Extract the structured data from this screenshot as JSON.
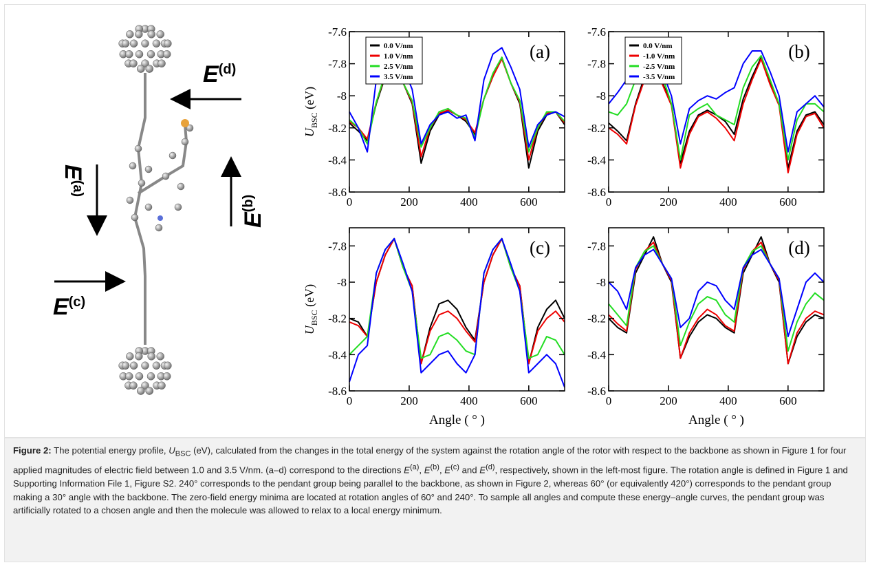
{
  "figure": {
    "field_labels": [
      {
        "symbol": "E",
        "sup": "(a)"
      },
      {
        "symbol": "E",
        "sup": "(b)"
      },
      {
        "symbol": "E",
        "sup": "(c)"
      },
      {
        "symbol": "E",
        "sup": "(d)"
      }
    ]
  },
  "chart_data": [
    {
      "type": "line",
      "annotation": "(a)",
      "ylabel": {
        "symbol": "U",
        "sub": "BSC",
        "unit": " (eV)"
      },
      "x": [
        0,
        30,
        60,
        90,
        120,
        150,
        180,
        210,
        240,
        270,
        300,
        330,
        360,
        390,
        420,
        450,
        480,
        510,
        540,
        570,
        600,
        630,
        660,
        690,
        720
      ],
      "xlim": [
        0,
        720
      ],
      "xticks": [
        0,
        200,
        400,
        600
      ],
      "ylim": [
        -8.6,
        -7.6
      ],
      "yticks": [
        -8.6,
        -8.4,
        -8.2,
        -8,
        -7.8,
        -7.6
      ],
      "legend": "upper left",
      "series": [
        {
          "name": "0.0 V/nm",
          "color": "#000000",
          "values": [
            -8.17,
            -8.22,
            -8.28,
            -8.05,
            -7.88,
            -7.76,
            -7.92,
            -8.05,
            -8.42,
            -8.22,
            -8.12,
            -8.09,
            -8.12,
            -8.16,
            -8.24,
            -8.02,
            -7.88,
            -7.76,
            -7.92,
            -8.05,
            -8.45,
            -8.22,
            -8.12,
            -8.1,
            -8.18
          ]
        },
        {
          "name": "1.0 V/nm",
          "color": "#ee0000",
          "values": [
            -8.16,
            -8.2,
            -8.27,
            -8.04,
            -7.87,
            -7.77,
            -7.92,
            -8.04,
            -8.38,
            -8.2,
            -8.11,
            -8.09,
            -8.12,
            -8.15,
            -8.23,
            -8.02,
            -7.88,
            -7.77,
            -7.92,
            -8.04,
            -8.4,
            -8.2,
            -8.11,
            -8.1,
            -8.17
          ]
        },
        {
          "name": "2.5 V/nm",
          "color": "#22dd22",
          "values": [
            -8.15,
            -8.2,
            -8.3,
            -8.04,
            -7.86,
            -7.76,
            -7.92,
            -8.03,
            -8.32,
            -8.2,
            -8.1,
            -8.08,
            -8.12,
            -8.14,
            -8.26,
            -8.02,
            -7.86,
            -7.76,
            -7.92,
            -8.03,
            -8.35,
            -8.2,
            -8.1,
            -8.1,
            -8.16
          ]
        },
        {
          "name": "3.5 V/nm",
          "color": "#0000ff",
          "values": [
            -8.1,
            -8.2,
            -8.35,
            -7.9,
            -7.74,
            -7.7,
            -7.82,
            -7.96,
            -8.3,
            -8.18,
            -8.12,
            -8.1,
            -8.14,
            -8.12,
            -8.28,
            -7.9,
            -7.74,
            -7.7,
            -7.82,
            -7.96,
            -8.32,
            -8.18,
            -8.12,
            -8.1,
            -8.13
          ]
        }
      ]
    },
    {
      "type": "line",
      "annotation": "(b)",
      "x": [
        0,
        30,
        60,
        90,
        120,
        150,
        180,
        210,
        240,
        270,
        300,
        330,
        360,
        390,
        420,
        450,
        480,
        510,
        540,
        570,
        600,
        630,
        660,
        690,
        720
      ],
      "xlim": [
        0,
        720
      ],
      "xticks": [
        0,
        200,
        400,
        600
      ],
      "ylim": [
        -8.6,
        -7.6
      ],
      "yticks": [
        -8.6,
        -8.4,
        -8.2,
        -8,
        -7.8,
        -7.6
      ],
      "legend": "upper left",
      "series": [
        {
          "name": "0.0 V/nm",
          "color": "#000000",
          "values": [
            -8.17,
            -8.22,
            -8.28,
            -8.05,
            -7.88,
            -7.76,
            -7.92,
            -8.05,
            -8.42,
            -8.22,
            -8.12,
            -8.09,
            -8.12,
            -8.16,
            -8.24,
            -8.02,
            -7.88,
            -7.76,
            -7.92,
            -8.05,
            -8.45,
            -8.22,
            -8.12,
            -8.1,
            -8.18
          ]
        },
        {
          "name": "-1.0 V/nm",
          "color": "#ee0000",
          "values": [
            -8.2,
            -8.24,
            -8.3,
            -8.06,
            -7.9,
            -7.77,
            -7.93,
            -8.06,
            -8.45,
            -8.24,
            -8.13,
            -8.1,
            -8.14,
            -8.2,
            -8.28,
            -8.05,
            -7.9,
            -7.77,
            -7.93,
            -8.06,
            -8.48,
            -8.24,
            -8.13,
            -8.11,
            -8.2
          ]
        },
        {
          "name": "-2.5 V/nm",
          "color": "#22dd22",
          "values": [
            -8.1,
            -8.12,
            -8.05,
            -7.9,
            -7.82,
            -7.75,
            -7.88,
            -8.05,
            -8.4,
            -8.12,
            -8.08,
            -8.05,
            -8.12,
            -8.15,
            -8.18,
            -7.95,
            -7.82,
            -7.75,
            -7.9,
            -8.05,
            -8.4,
            -8.15,
            -8.05,
            -8.05,
            -8.1
          ]
        },
        {
          "name": "-3.5 V/nm",
          "color": "#0000ff",
          "values": [
            -8.05,
            -7.98,
            -7.9,
            -7.75,
            -7.7,
            -7.72,
            -7.85,
            -8.0,
            -8.3,
            -8.08,
            -8.03,
            -8.0,
            -8.02,
            -7.98,
            -7.95,
            -7.8,
            -7.72,
            -7.72,
            -7.85,
            -8.0,
            -8.35,
            -8.1,
            -8.05,
            -8.0,
            -8.07
          ]
        }
      ]
    },
    {
      "type": "line",
      "annotation": "(c)",
      "ylabel": {
        "symbol": "U",
        "sub": "BSC",
        "unit": " (eV)"
      },
      "xlabel": "Angle ( ° )",
      "x": [
        0,
        30,
        60,
        90,
        120,
        150,
        180,
        210,
        240,
        270,
        300,
        330,
        360,
        390,
        420,
        450,
        480,
        510,
        540,
        570,
        600,
        630,
        660,
        690,
        720
      ],
      "xlim": [
        0,
        720
      ],
      "xticks": [
        0,
        200,
        400,
        600
      ],
      "ylim": [
        -8.6,
        -7.7
      ],
      "yticks": [
        -8.6,
        -8.4,
        -8.2,
        -8,
        -7.8
      ],
      "series": [
        {
          "color": "#000000",
          "values": [
            -8.2,
            -8.22,
            -8.3,
            -8.0,
            -7.85,
            -7.76,
            -7.92,
            -8.02,
            -8.45,
            -8.25,
            -8.12,
            -8.1,
            -8.15,
            -8.25,
            -8.32,
            -8.0,
            -7.85,
            -7.76,
            -7.92,
            -8.02,
            -8.45,
            -8.25,
            -8.15,
            -8.1,
            -8.2
          ]
        },
        {
          "color": "#ee0000",
          "values": [
            -8.22,
            -8.24,
            -8.3,
            -8.0,
            -7.85,
            -7.76,
            -7.92,
            -8.02,
            -8.45,
            -8.27,
            -8.18,
            -8.16,
            -8.2,
            -8.27,
            -8.33,
            -8.0,
            -7.85,
            -7.76,
            -7.92,
            -8.02,
            -8.45,
            -8.27,
            -8.2,
            -8.16,
            -8.22
          ]
        },
        {
          "color": "#22dd22",
          "values": [
            -8.4,
            -8.35,
            -8.3,
            -7.95,
            -7.82,
            -7.76,
            -7.92,
            -8.05,
            -8.42,
            -8.4,
            -8.3,
            -8.28,
            -8.32,
            -8.38,
            -8.4,
            -7.95,
            -7.82,
            -7.76,
            -7.92,
            -8.05,
            -8.42,
            -8.4,
            -8.3,
            -8.32,
            -8.4
          ]
        },
        {
          "color": "#0000ff",
          "values": [
            -8.55,
            -8.4,
            -8.35,
            -7.95,
            -7.82,
            -7.76,
            -7.9,
            -8.05,
            -8.5,
            -8.45,
            -8.4,
            -8.38,
            -8.45,
            -8.5,
            -8.4,
            -7.95,
            -7.82,
            -7.76,
            -7.9,
            -8.05,
            -8.5,
            -8.45,
            -8.4,
            -8.45,
            -8.58
          ]
        }
      ]
    },
    {
      "type": "line",
      "annotation": "(d)",
      "xlabel": "Angle ( ° )",
      "x": [
        0,
        30,
        60,
        90,
        120,
        150,
        180,
        210,
        240,
        270,
        300,
        330,
        360,
        390,
        420,
        450,
        480,
        510,
        540,
        570,
        600,
        630,
        660,
        690,
        720
      ],
      "xlim": [
        0,
        720
      ],
      "xticks": [
        0,
        200,
        400,
        600
      ],
      "ylim": [
        -8.6,
        -7.7
      ],
      "yticks": [
        -8.6,
        -8.4,
        -8.2,
        -8,
        -7.8
      ],
      "series": [
        {
          "color": "#000000",
          "values": [
            -8.2,
            -8.25,
            -8.28,
            -7.95,
            -7.85,
            -7.75,
            -7.9,
            -8.0,
            -8.42,
            -8.3,
            -8.22,
            -8.18,
            -8.2,
            -8.25,
            -8.28,
            -7.95,
            -7.85,
            -7.75,
            -7.9,
            -8.0,
            -8.45,
            -8.3,
            -8.22,
            -8.18,
            -8.2
          ]
        },
        {
          "color": "#ee0000",
          "values": [
            -8.18,
            -8.23,
            -8.27,
            -7.93,
            -7.83,
            -7.78,
            -7.9,
            -7.99,
            -8.42,
            -8.28,
            -8.2,
            -8.15,
            -8.18,
            -8.24,
            -8.27,
            -7.93,
            -7.83,
            -7.78,
            -7.9,
            -7.99,
            -8.45,
            -8.28,
            -8.2,
            -8.16,
            -8.18
          ]
        },
        {
          "color": "#22dd22",
          "values": [
            -8.12,
            -8.18,
            -8.24,
            -7.92,
            -7.83,
            -7.8,
            -7.9,
            -7.98,
            -8.35,
            -8.22,
            -8.12,
            -8.08,
            -8.1,
            -8.18,
            -8.22,
            -7.92,
            -7.83,
            -7.8,
            -7.9,
            -7.98,
            -8.38,
            -8.22,
            -8.12,
            -8.06,
            -8.1
          ]
        },
        {
          "color": "#0000ff",
          "values": [
            -8.0,
            -8.05,
            -8.15,
            -7.92,
            -7.85,
            -7.82,
            -7.9,
            -7.98,
            -8.25,
            -8.2,
            -8.05,
            -8.0,
            -8.02,
            -8.1,
            -8.15,
            -7.92,
            -7.85,
            -7.82,
            -7.9,
            -7.98,
            -8.3,
            -8.15,
            -8.0,
            -7.95,
            -8.0
          ]
        }
      ]
    }
  ],
  "caption": {
    "segments": [
      "Figure 2:",
      " The potential energy profile, ",
      "U",
      "BSC",
      " (eV), calculated from the changes in the total energy of the system against the rotation angle of the rotor with respect to the backbone as shown in Figure 1 for four applied magnitudes of electric field between 1.0 and 3.5 V/nm. (a–d) correspond to the directions ",
      "E",
      "(a)",
      ", ",
      "E",
      "(b)",
      ", ",
      "E",
      "(c)",
      " and ",
      "E",
      "(d)",
      ", respectively, shown in the left-most figure. The rotation angle is defined in Figure 1 and Supporting Information File 1, Figure S2. 240° corresponds to the pendant group being parallel to the backbone, as shown in Figure 2, whereas 60° (or equivalently 420°) corresponds to the pendant group making a 30° angle with the backbone. The zero-field energy minima are located at rotation angles of 60° and 240°. To sample all angles and compute these energy–angle curves, the pendant group was artificially rotated to a chosen angle and then the molecule was allowed to relax to a local energy minimum."
    ]
  }
}
